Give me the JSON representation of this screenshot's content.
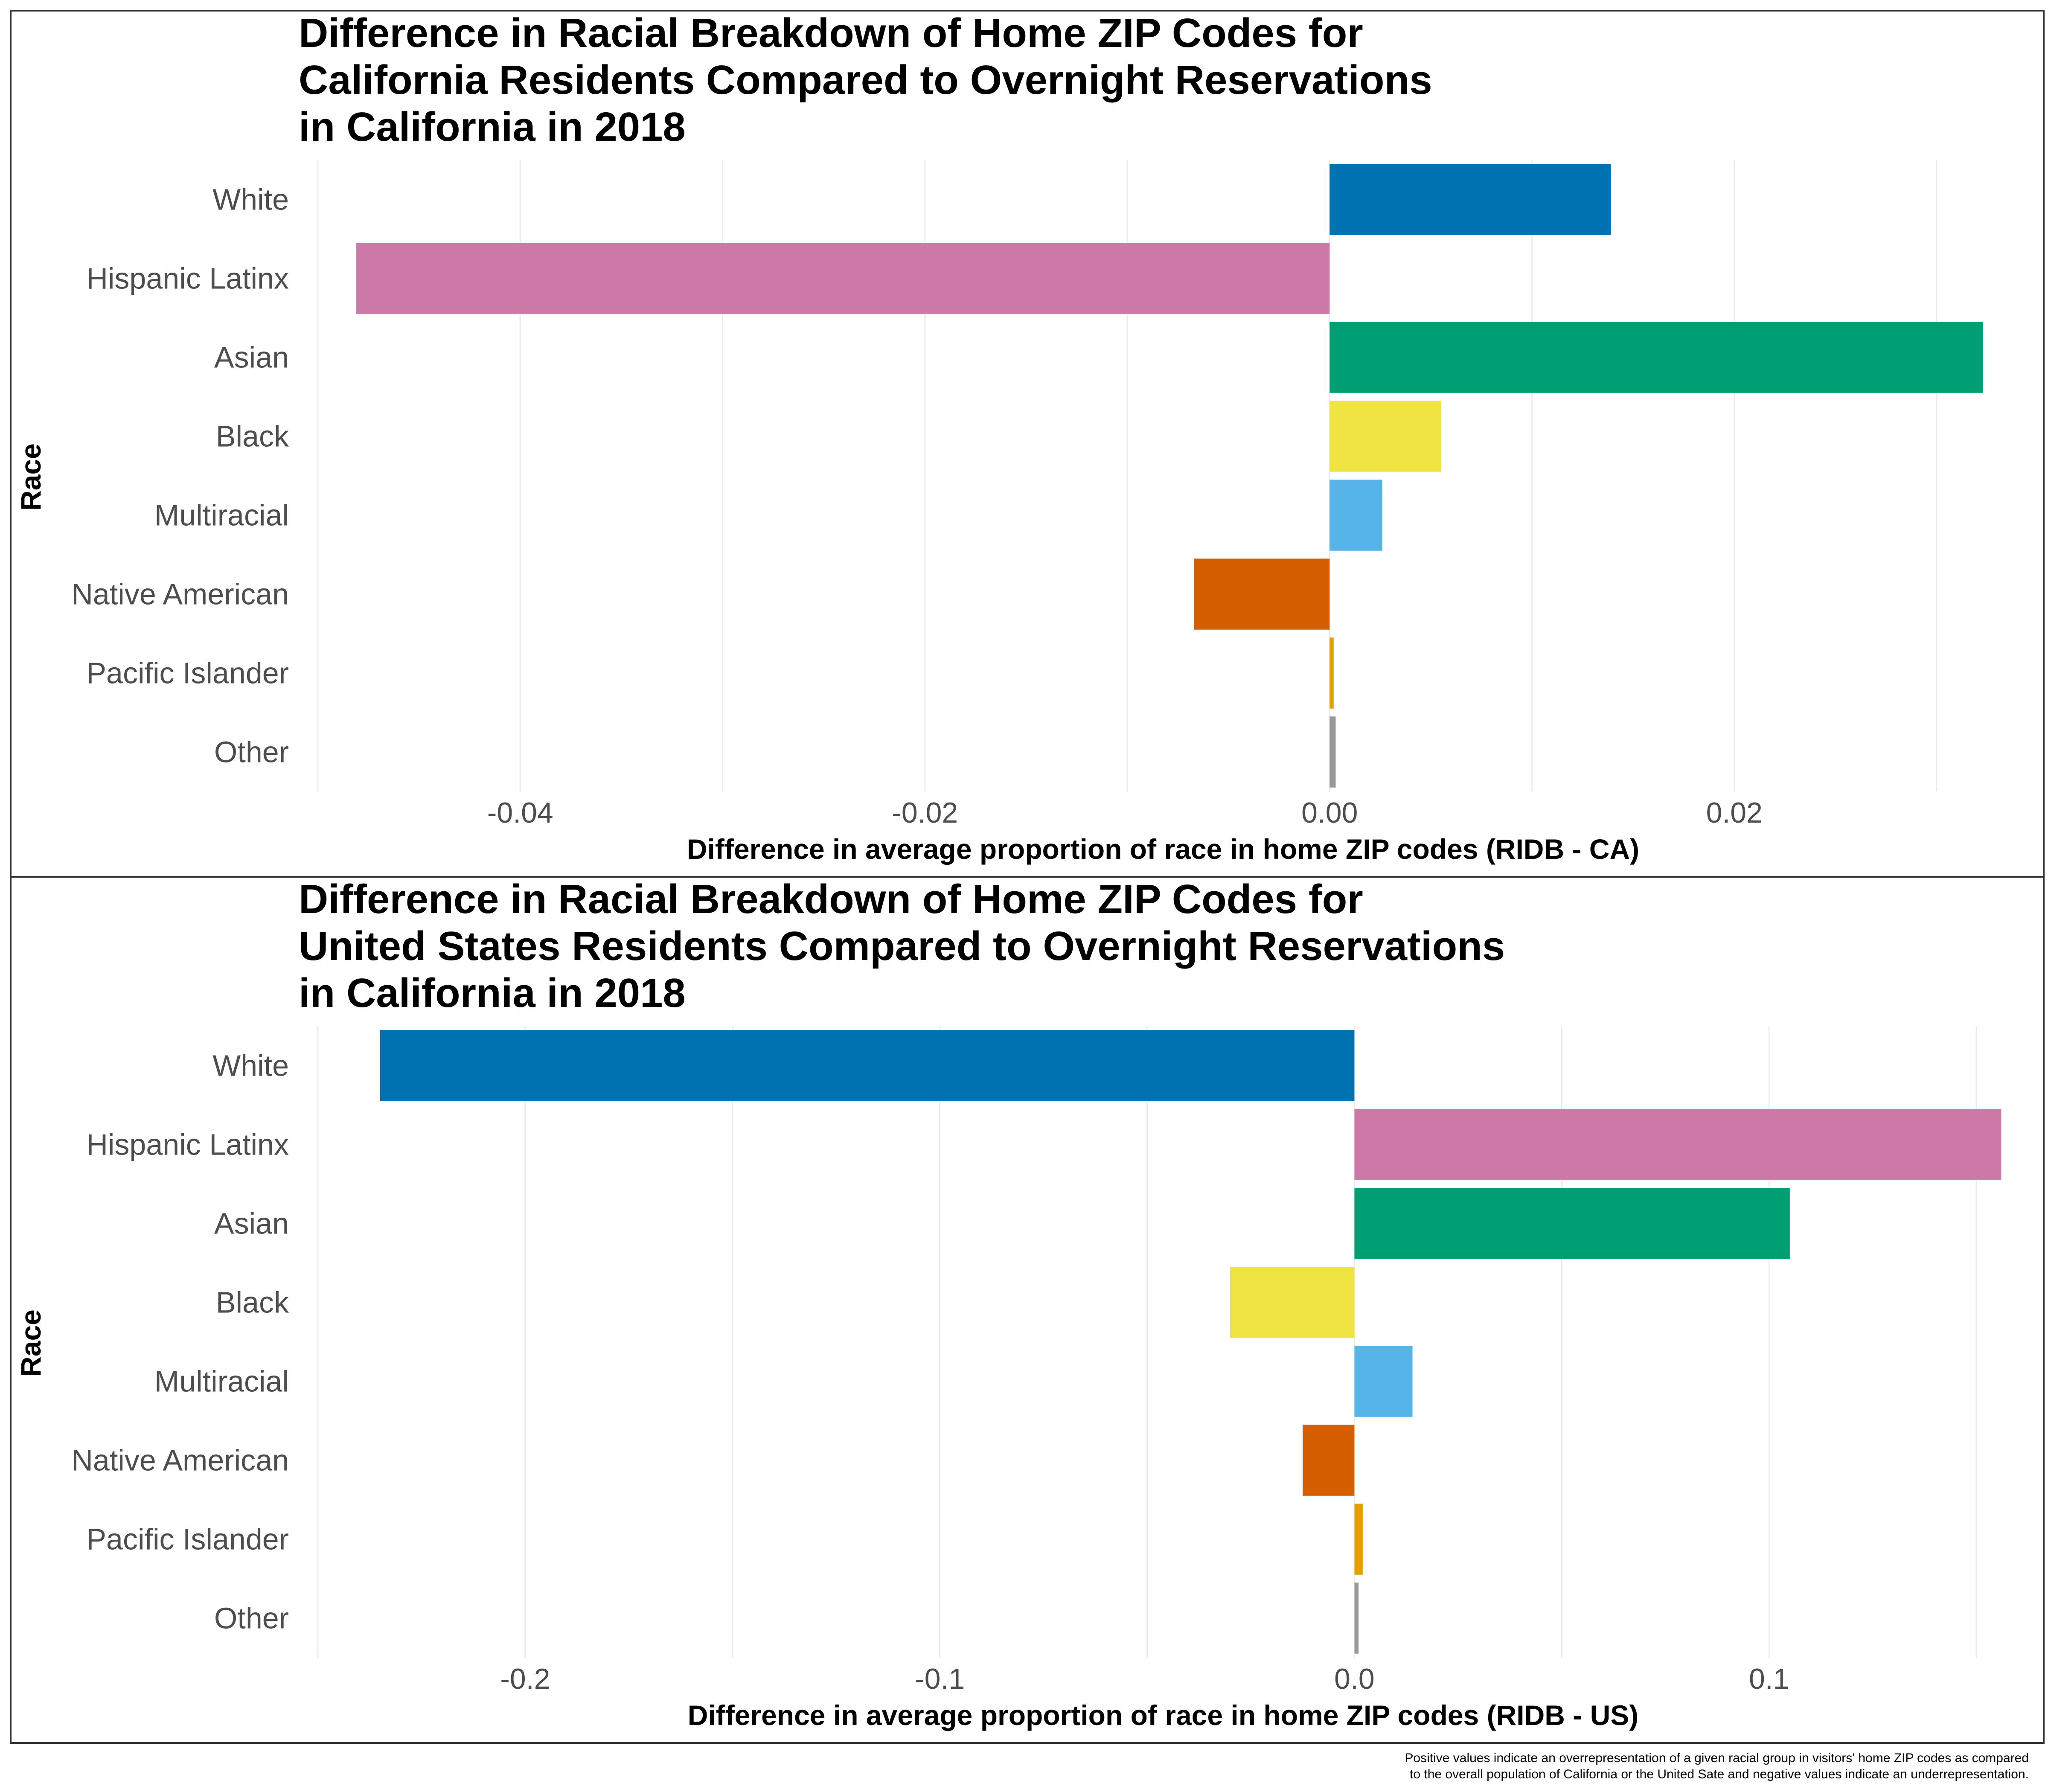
{
  "chart_data": [
    {
      "type": "bar",
      "orientation": "horizontal",
      "title_lines": [
        "Difference in Racial Breakdown of Home ZIP Codes for",
        "California Residents Compared to Overnight Reservations",
        "in California in 2018"
      ],
      "xlabel": "Difference in average proportion of race in home ZIP codes (RIDB - CA)",
      "ylabel": "Race",
      "categories": [
        "White",
        "Hispanic Latinx",
        "Asian",
        "Black",
        "Multiracial",
        "Native American",
        "Pacific Islander",
        "Other"
      ],
      "values": [
        0.0139,
        -0.0481,
        0.0323,
        0.0055,
        0.0026,
        -0.0067,
        0.0002,
        0.0003
      ],
      "colors": [
        "#0072B2",
        "#CC79A7",
        "#009E73",
        "#F0E442",
        "#56B4E9",
        "#D55E00",
        "#E69F00",
        "#999999"
      ],
      "xlim": [
        -0.05,
        0.0335
      ],
      "xticks": [
        -0.04,
        -0.02,
        0.0,
        0.02
      ],
      "xtick_labels": [
        "-0.04",
        "-0.02",
        "0.00",
        "0.02"
      ],
      "grid": true,
      "legend": "none"
    },
    {
      "type": "bar",
      "orientation": "horizontal",
      "title_lines": [
        "Difference in Racial Breakdown of Home ZIP Codes for",
        "United States Residents Compared to Overnight Reservations",
        "in California in 2018"
      ],
      "xlabel": "Difference in average proportion of race in home ZIP codes (RIDB - US)",
      "ylabel": "Race",
      "categories": [
        "White",
        "Hispanic Latinx",
        "Asian",
        "Black",
        "Multiracial",
        "Native American",
        "Pacific Islander",
        "Other"
      ],
      "values": [
        -0.235,
        0.156,
        0.105,
        -0.03,
        0.014,
        -0.0125,
        0.002,
        0.001
      ],
      "colors": [
        "#0072B2",
        "#CC79A7",
        "#009E73",
        "#F0E442",
        "#56B4E9",
        "#D55E00",
        "#E69F00",
        "#999999"
      ],
      "xlim": [
        -0.25,
        0.1575
      ],
      "xticks": [
        -0.2,
        -0.1,
        0.0,
        0.1
      ],
      "xtick_labels": [
        "-0.2",
        "-0.1",
        "0.0",
        "0.1"
      ],
      "grid": true,
      "legend": "none"
    }
  ],
  "caption_lines": [
    "Positive values indicate an overrepresentation of a given racial group in visitors' home ZIP codes as compared",
    "to the overall population of California or the United Sate and negative values indicate an underrepresentation."
  ]
}
